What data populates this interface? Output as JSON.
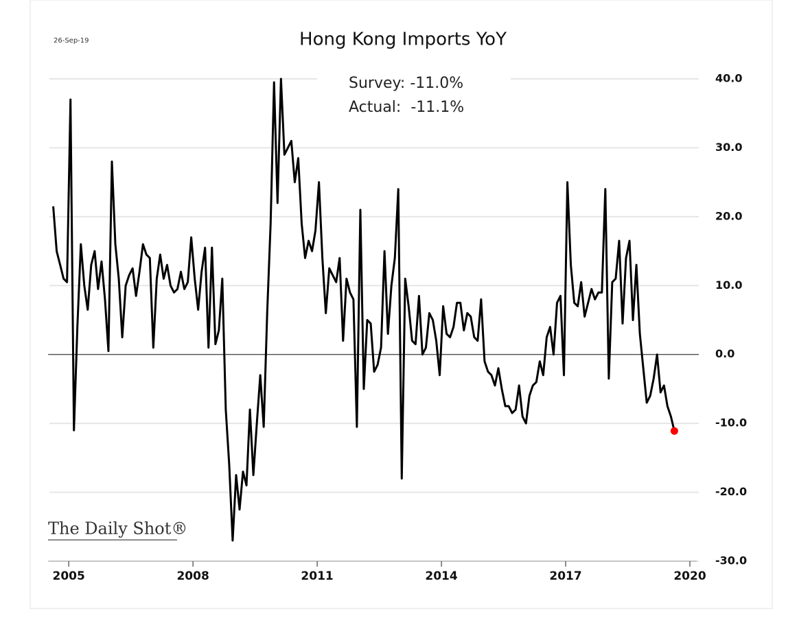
{
  "chart_data": {
    "type": "line",
    "title": "Hong Kong Imports YoY",
    "date_label": "26-Sep-19",
    "annotations": [
      "Survey: -11.0%",
      "Actual:  -11.1%"
    ],
    "source": "The Daily Shot®",
    "series": [
      {
        "name": "Hong Kong Imports YoY",
        "color": "#000000",
        "x": [
          2004.625,
          2004.708,
          2004.792,
          2004.875,
          2004.958,
          2005.042,
          2005.125,
          2005.208,
          2005.292,
          2005.375,
          2005.458,
          2005.542,
          2005.625,
          2005.708,
          2005.792,
          2005.875,
          2005.958,
          2006.042,
          2006.125,
          2006.208,
          2006.292,
          2006.375,
          2006.458,
          2006.542,
          2006.625,
          2006.708,
          2006.792,
          2006.875,
          2006.958,
          2007.042,
          2007.125,
          2007.208,
          2007.292,
          2007.375,
          2007.458,
          2007.542,
          2007.625,
          2007.708,
          2007.792,
          2007.875,
          2007.958,
          2008.042,
          2008.125,
          2008.208,
          2008.292,
          2008.375,
          2008.458,
          2008.542,
          2008.625,
          2008.708,
          2008.792,
          2008.875,
          2008.958,
          2009.042,
          2009.125,
          2009.208,
          2009.292,
          2009.375,
          2009.458,
          2009.542,
          2009.625,
          2009.708,
          2009.792,
          2009.875,
          2009.958,
          2010.042,
          2010.125,
          2010.208,
          2010.292,
          2010.375,
          2010.458,
          2010.542,
          2010.625,
          2010.708,
          2010.792,
          2010.875,
          2010.958,
          2011.042,
          2011.125,
          2011.208,
          2011.292,
          2011.375,
          2011.458,
          2011.542,
          2011.625,
          2011.708,
          2011.792,
          2011.875,
          2011.958,
          2012.042,
          2012.125,
          2012.208,
          2012.292,
          2012.375,
          2012.458,
          2012.542,
          2012.625,
          2012.708,
          2012.792,
          2012.875,
          2012.958,
          2013.042,
          2013.125,
          2013.208,
          2013.292,
          2013.375,
          2013.458,
          2013.542,
          2013.625,
          2013.708,
          2013.792,
          2013.875,
          2013.958,
          2014.042,
          2014.125,
          2014.208,
          2014.292,
          2014.375,
          2014.458,
          2014.542,
          2014.625,
          2014.708,
          2014.792,
          2014.875,
          2014.958,
          2015.042,
          2015.125,
          2015.208,
          2015.292,
          2015.375,
          2015.458,
          2015.542,
          2015.625,
          2015.708,
          2015.792,
          2015.875,
          2015.958,
          2016.042,
          2016.125,
          2016.208,
          2016.292,
          2016.375,
          2016.458,
          2016.542,
          2016.625,
          2016.708,
          2016.792,
          2016.875,
          2016.958,
          2017.042,
          2017.125,
          2017.208,
          2017.292,
          2017.375,
          2017.458,
          2017.542,
          2017.625,
          2017.708,
          2017.792,
          2017.875,
          2017.958,
          2018.042,
          2018.125,
          2018.208,
          2018.292,
          2018.375,
          2018.458,
          2018.542,
          2018.625,
          2018.708,
          2018.792,
          2018.875,
          2018.958,
          2019.042,
          2019.125,
          2019.208,
          2019.292,
          2019.375,
          2019.458,
          2019.542,
          2019.625
        ],
        "values": [
          21.5,
          15,
          13,
          11,
          10.5,
          37,
          -11,
          4,
          16,
          10,
          6.5,
          13,
          15,
          9.5,
          13.5,
          8,
          0.5,
          28,
          16,
          11,
          2.5,
          10,
          11.5,
          12.5,
          8.5,
          12,
          16,
          14.5,
          14,
          1,
          11,
          14.5,
          11,
          13,
          10,
          9,
          9.5,
          12,
          9.5,
          10.5,
          17,
          11,
          6.5,
          12,
          15.5,
          1,
          15.5,
          1.5,
          3.5,
          11,
          -8,
          -16,
          -27,
          -17.5,
          -22.5,
          -17,
          -19,
          -8,
          -17.5,
          -10,
          -3,
          -10.5,
          6,
          19,
          39.5,
          22,
          40,
          29,
          30,
          31,
          25,
          28.5,
          19,
          14,
          16.5,
          15,
          18,
          25,
          14,
          6,
          12.5,
          11.5,
          10.5,
          14,
          2,
          11,
          9,
          8,
          -10.5,
          21,
          -5,
          5,
          4.5,
          -2.5,
          -1.5,
          1,
          15,
          3,
          10,
          14,
          24,
          -18,
          11,
          7,
          2,
          1.5,
          8.5,
          0,
          1,
          6,
          5,
          2,
          -3,
          7,
          3,
          2.5,
          4,
          7.5,
          7.5,
          3.5,
          6,
          5.5,
          2.5,
          2,
          8,
          -1,
          -2.5,
          -3,
          -4.5,
          -2,
          -5,
          -7.5,
          -7.5,
          -8.5,
          -8,
          -4.5,
          -9,
          -10,
          -6,
          -4.5,
          -4,
          -1,
          -3,
          2.5,
          4,
          0,
          7.5,
          8.5,
          -3,
          25,
          13,
          7.5,
          7,
          10.5,
          5.5,
          7.5,
          9.5,
          8,
          9,
          9,
          24,
          -3.5,
          10.5,
          11,
          16.5,
          4.5,
          14,
          16.5,
          5,
          13,
          3,
          -2,
          -7,
          -6,
          -3.5,
          0,
          -5.5,
          -4.5,
          -7.5,
          -9,
          -11.1
        ]
      }
    ],
    "last_point_color": "#ff0000",
    "xlim": [
      2004.5,
      2020
    ],
    "xticks": [
      2005,
      2008,
      2011,
      2014,
      2017,
      2020
    ],
    "ylim": [
      -30,
      40
    ],
    "yticks": [
      {
        "value": -30,
        "label": "-30.0"
      },
      {
        "value": -20,
        "label": "-20.0"
      },
      {
        "value": -10,
        "label": "-10.0"
      },
      {
        "value": 0,
        "label": "0.0"
      },
      {
        "value": 10,
        "label": "10.0"
      },
      {
        "value": 20,
        "label": "20.0"
      },
      {
        "value": 30,
        "label": "30.0"
      },
      {
        "value": 40,
        "label": "40.0"
      }
    ],
    "grid": true,
    "zero_line": true
  }
}
